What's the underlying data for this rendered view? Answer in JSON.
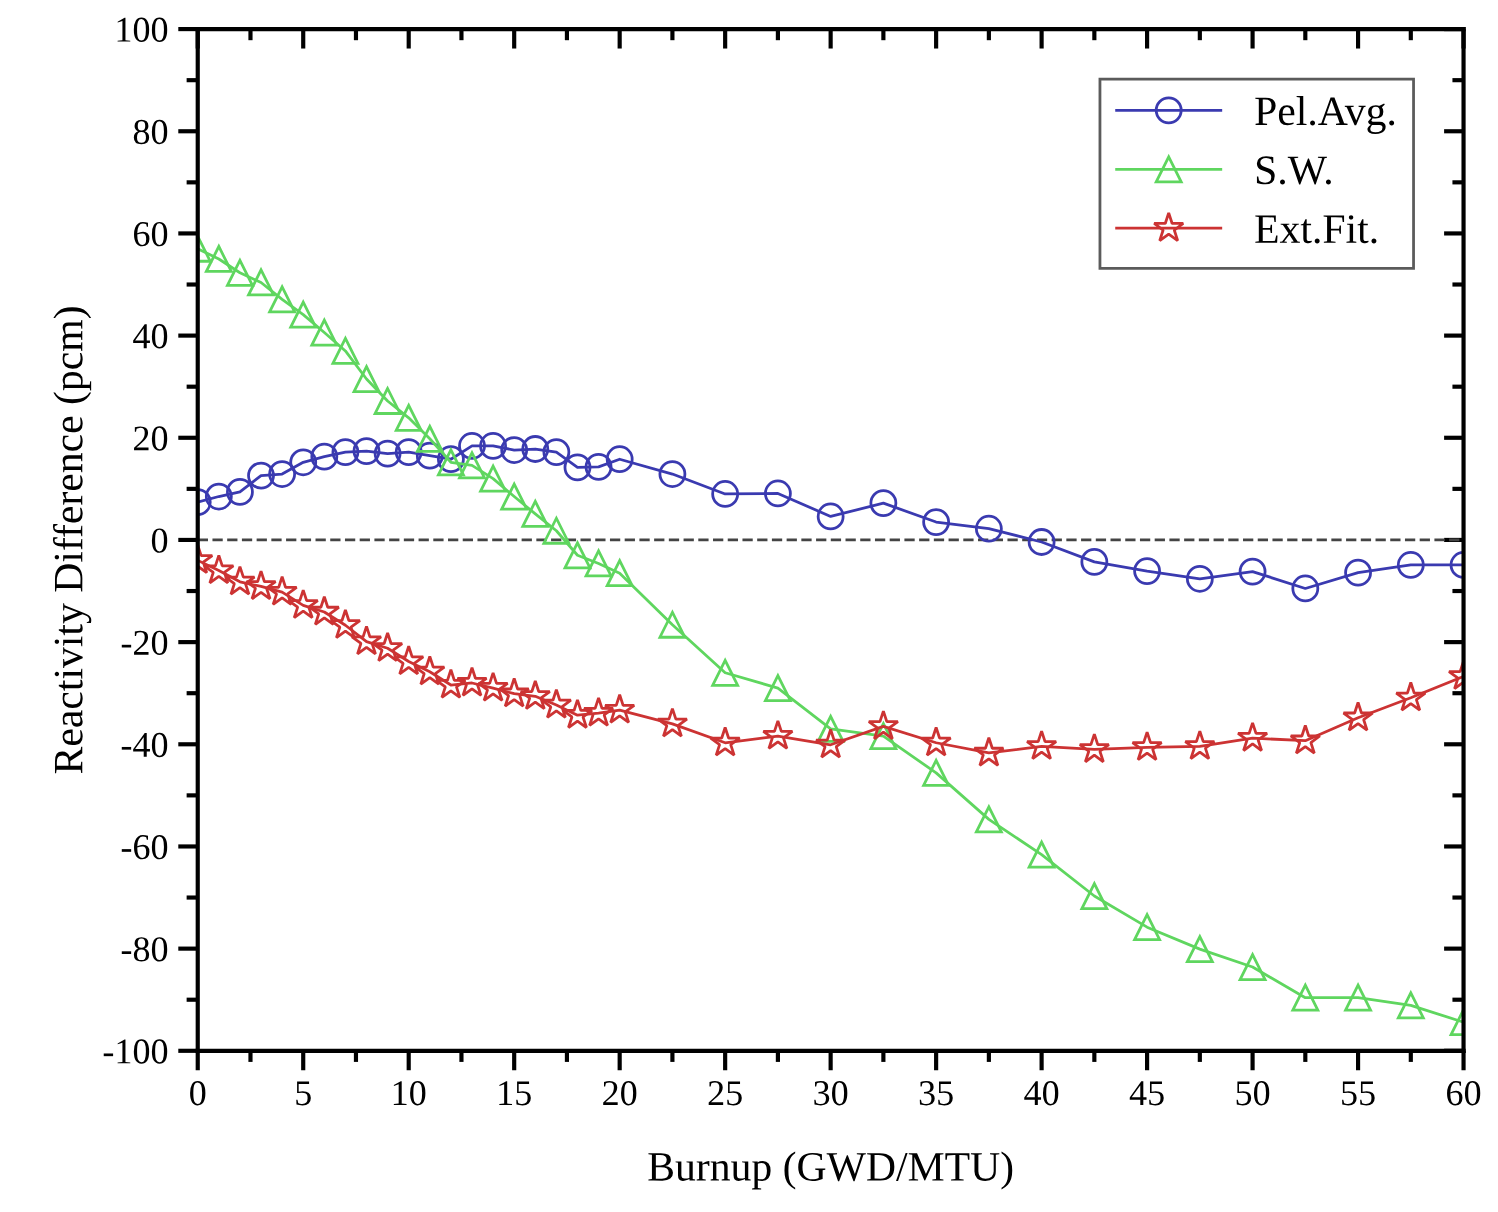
{
  "chart_data": {
    "type": "line",
    "xlabel": "Burnup (GWD/MTU)",
    "ylabel": "Reactivity Difference (pcm)",
    "xlim": [
      0,
      60
    ],
    "ylim": [
      -100,
      100
    ],
    "xticks": [
      0,
      5,
      10,
      15,
      20,
      25,
      30,
      35,
      40,
      45,
      50,
      55,
      60
    ],
    "yticks": [
      -100,
      -80,
      -60,
      -40,
      -20,
      0,
      20,
      40,
      60,
      80,
      100
    ],
    "grid": false,
    "legend": "top right",
    "line_style": "solid",
    "ref_lines": [
      {
        "axis": "y",
        "value": 0,
        "color": "#444444",
        "line_style": "dashed"
      }
    ],
    "series": [
      {
        "name": "Pel.Avg.",
        "color": "#3a3ab0",
        "marker": "circle",
        "x": [
          0,
          1,
          2,
          3,
          4,
          5,
          6,
          7,
          8,
          9,
          10,
          11,
          12,
          13,
          14,
          15,
          16,
          17,
          18,
          19,
          20,
          22.5,
          25,
          27.5,
          30,
          32.5,
          35,
          37.5,
          40,
          42.5,
          45,
          47.5,
          50,
          52.5,
          55,
          57.5,
          60
        ],
        "values": [
          7.4,
          8.5,
          9.4,
          12.6,
          12.9,
          15.2,
          16.3,
          17.2,
          17.4,
          16.9,
          17.2,
          16.5,
          15.8,
          18.4,
          18.4,
          17.6,
          17.8,
          17.2,
          14.2,
          14.3,
          15.8,
          12.9,
          9,
          9.1,
          4.6,
          7.2,
          3.5,
          2.2,
          -0.4,
          -4.3,
          -6.1,
          -7.6,
          -6.2,
          -9.5,
          -6.4,
          -4.9,
          -4.9
        ]
      },
      {
        "name": "S.W.",
        "color": "#5fd65f",
        "marker": "triangle",
        "x": [
          0,
          1,
          2,
          3,
          4,
          5,
          6,
          7,
          8,
          9,
          10,
          11,
          12,
          13,
          14,
          15,
          16,
          17,
          18,
          19,
          20,
          22.5,
          25,
          27.5,
          30,
          32.5,
          35,
          37.5,
          40,
          42.5,
          45,
          47.5,
          50,
          52.5,
          55,
          57.5,
          60
        ],
        "values": [
          57,
          55,
          52.3,
          50.4,
          47.1,
          44.1,
          40.6,
          37,
          31.5,
          27.2,
          23.9,
          19.8,
          15.2,
          14.6,
          12,
          8.5,
          5.1,
          1.8,
          -3,
          -4.6,
          -6.5,
          -16.6,
          -26,
          -29,
          -37,
          -38.4,
          -45.6,
          -54.7,
          -61.6,
          -69.7,
          -75.8,
          -80.1,
          -83.6,
          -89.6,
          -89.6,
          -91.1,
          -94.4
        ]
      },
      {
        "name": "Ext.Fit.",
        "color": "#cc3333",
        "marker": "star",
        "x": [
          0,
          1,
          2,
          3,
          4,
          5,
          6,
          7,
          8,
          9,
          10,
          11,
          12,
          13,
          14,
          15,
          16,
          17,
          18,
          19,
          20,
          22.5,
          25,
          27.5,
          30,
          32.5,
          35,
          37.5,
          40,
          42.5,
          45,
          47.5,
          50,
          52.5,
          55,
          57.5,
          60
        ],
        "values": [
          -4,
          -6,
          -8.2,
          -9.1,
          -10.2,
          -12.8,
          -14.1,
          -16.7,
          -19.9,
          -21.2,
          -23.8,
          -25.8,
          -28.4,
          -28,
          -29,
          -30.1,
          -30.6,
          -32.3,
          -34.3,
          -33.9,
          -33.3,
          -36,
          -39.7,
          -38.4,
          -40.1,
          -36.5,
          -39.7,
          -41.7,
          -40.4,
          -41,
          -40.6,
          -40.4,
          -38.8,
          -39.3,
          -34.8,
          -30.9,
          -26.7
        ]
      }
    ]
  }
}
